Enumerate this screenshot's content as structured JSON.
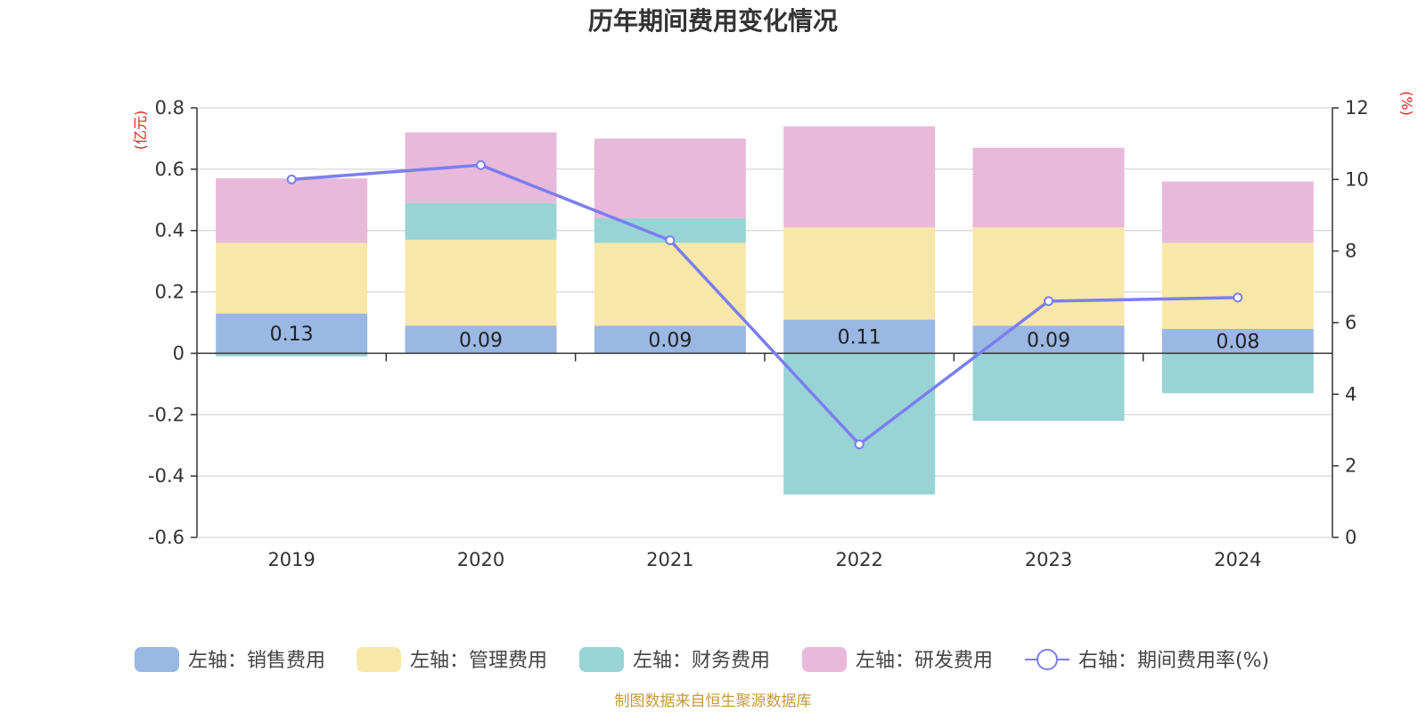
{
  "chart_data": {
    "type": "bar",
    "title": "历年期间费用变化情况",
    "categories": [
      "2019",
      "2020",
      "2021",
      "2022",
      "2023",
      "2024"
    ],
    "left_axis": {
      "unit": "(亿元)",
      "min": -0.6,
      "max": 0.8,
      "ticks": [
        -0.6,
        -0.4,
        -0.2,
        0,
        0.2,
        0.4,
        0.6,
        0.8
      ],
      "tick_labels": [
        "-0.6",
        "-0.4",
        "-0.2",
        "0",
        "0.2",
        "0.4",
        "0.6",
        "0.8"
      ]
    },
    "right_axis": {
      "unit": "(%)",
      "min": 0,
      "max": 12,
      "ticks": [
        0,
        2,
        4,
        6,
        8,
        10,
        12
      ],
      "tick_labels": [
        "0",
        "2",
        "4",
        "6",
        "8",
        "10",
        "12"
      ]
    },
    "series": [
      {
        "name": "左轴：销售费用",
        "type": "bar",
        "axis": "left",
        "color": "#9bb7e3",
        "values": [
          0.13,
          0.09,
          0.09,
          0.11,
          0.09,
          0.08
        ],
        "data_labels": [
          "0.13",
          "0.09",
          "0.09",
          "0.11",
          "0.09",
          "0.08"
        ]
      },
      {
        "name": "左轴：管理费用",
        "type": "bar",
        "axis": "left",
        "color": "#f8e7a8",
        "values": [
          0.23,
          0.28,
          0.27,
          0.3,
          0.32,
          0.28
        ]
      },
      {
        "name": "左轴：财务费用",
        "type": "bar",
        "axis": "left",
        "color": "#98d4d5",
        "values": [
          -0.01,
          0.12,
          0.08,
          -0.46,
          -0.22,
          -0.13
        ]
      },
      {
        "name": "左轴：研发费用",
        "type": "bar",
        "axis": "left",
        "color": "#e8b9da",
        "values": [
          0.21,
          0.23,
          0.26,
          0.33,
          0.26,
          0.2
        ]
      },
      {
        "name": "右轴：期间费用率(%)",
        "type": "line",
        "axis": "right",
        "color": "#7b7ef0",
        "values": [
          10.0,
          10.4,
          8.3,
          2.6,
          6.6,
          6.7
        ]
      }
    ],
    "legend_position": "bottom",
    "grid": true
  },
  "source": "制图数据来自恒生聚源数据库"
}
